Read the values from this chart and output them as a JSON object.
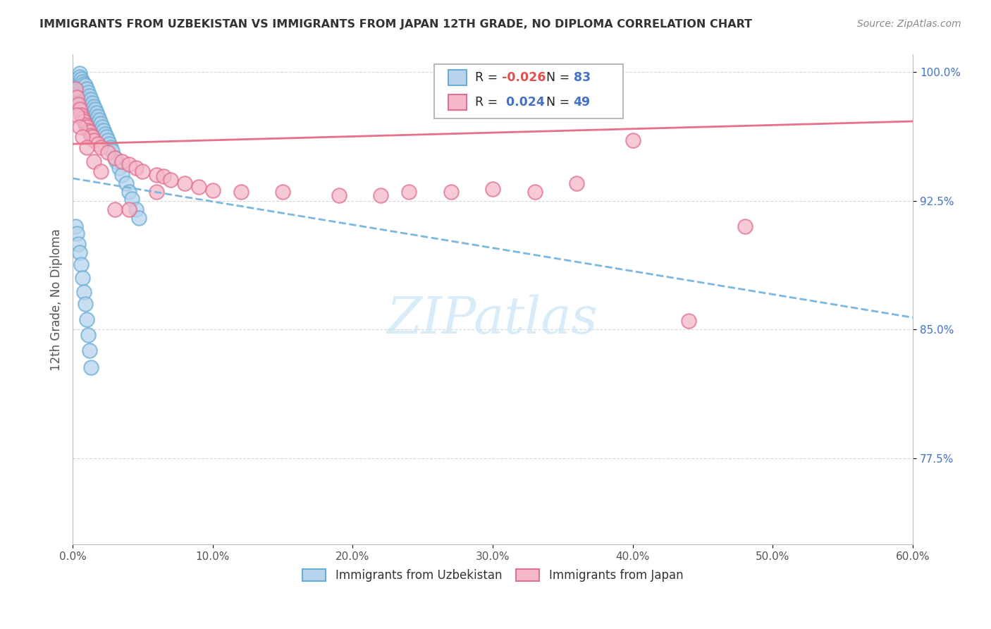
{
  "title": "IMMIGRANTS FROM UZBEKISTAN VS IMMIGRANTS FROM JAPAN 12TH GRADE, NO DIPLOMA CORRELATION CHART",
  "source": "Source: ZipAtlas.com",
  "ylabel": "12th Grade, No Diploma",
  "xlim": [
    0.0,
    0.6
  ],
  "ylim": [
    0.725,
    1.01
  ],
  "xtick_vals": [
    0.0,
    0.1,
    0.2,
    0.3,
    0.4,
    0.5,
    0.6
  ],
  "ytick_labels": [
    "77.5%",
    "85.0%",
    "92.5%",
    "100.0%"
  ],
  "ytick_vals": [
    0.775,
    0.85,
    0.925,
    1.0
  ],
  "legend_label1": "Immigrants from Uzbekistan",
  "legend_label2": "Immigrants from Japan",
  "R1": "-0.026",
  "N1": "83",
  "R2": "0.024",
  "N2": "49",
  "color_uzbek_face": "#b8d4ec",
  "color_uzbek_edge": "#6aaed6",
  "color_japan_face": "#f4b8c8",
  "color_japan_edge": "#e07090",
  "color_uzbek_line": "#7ab8e0",
  "color_japan_line": "#e8708a",
  "watermark_color": "#d0e8f8",
  "uzbek_trend": [
    -0.135,
    0.938
  ],
  "japan_trend": [
    0.022,
    0.958
  ],
  "uzbek_x": [
    0.002,
    0.003,
    0.003,
    0.004,
    0.004,
    0.004,
    0.005,
    0.005,
    0.005,
    0.005,
    0.005,
    0.006,
    0.006,
    0.006,
    0.006,
    0.007,
    0.007,
    0.007,
    0.007,
    0.008,
    0.008,
    0.008,
    0.008,
    0.009,
    0.009,
    0.009,
    0.009,
    0.01,
    0.01,
    0.01,
    0.01,
    0.011,
    0.011,
    0.011,
    0.012,
    0.012,
    0.012,
    0.013,
    0.013,
    0.013,
    0.014,
    0.014,
    0.015,
    0.015,
    0.015,
    0.016,
    0.016,
    0.017,
    0.017,
    0.018,
    0.018,
    0.019,
    0.02,
    0.02,
    0.021,
    0.022,
    0.023,
    0.024,
    0.025,
    0.026,
    0.027,
    0.028,
    0.03,
    0.031,
    0.033,
    0.035,
    0.038,
    0.04,
    0.042,
    0.045,
    0.047,
    0.002,
    0.003,
    0.004,
    0.005,
    0.006,
    0.007,
    0.008,
    0.009,
    0.01,
    0.011,
    0.012,
    0.013
  ],
  "uzbek_y": [
    0.995,
    0.992,
    0.988,
    0.996,
    0.99,
    0.985,
    0.999,
    0.997,
    0.993,
    0.989,
    0.983,
    0.996,
    0.992,
    0.987,
    0.981,
    0.994,
    0.99,
    0.985,
    0.979,
    0.993,
    0.988,
    0.983,
    0.977,
    0.992,
    0.987,
    0.982,
    0.976,
    0.99,
    0.986,
    0.98,
    0.974,
    0.988,
    0.984,
    0.978,
    0.986,
    0.982,
    0.976,
    0.984,
    0.98,
    0.975,
    0.982,
    0.978,
    0.98,
    0.976,
    0.971,
    0.978,
    0.974,
    0.976,
    0.972,
    0.974,
    0.97,
    0.972,
    0.97,
    0.966,
    0.968,
    0.966,
    0.964,
    0.962,
    0.96,
    0.958,
    0.956,
    0.954,
    0.95,
    0.948,
    0.944,
    0.94,
    0.935,
    0.93,
    0.926,
    0.92,
    0.915,
    0.91,
    0.906,
    0.9,
    0.895,
    0.888,
    0.88,
    0.872,
    0.865,
    0.856,
    0.847,
    0.838,
    0.828
  ],
  "japan_x": [
    0.002,
    0.003,
    0.004,
    0.005,
    0.006,
    0.007,
    0.008,
    0.009,
    0.01,
    0.011,
    0.012,
    0.013,
    0.014,
    0.015,
    0.018,
    0.02,
    0.025,
    0.03,
    0.035,
    0.04,
    0.045,
    0.05,
    0.06,
    0.065,
    0.07,
    0.08,
    0.09,
    0.1,
    0.12,
    0.15,
    0.19,
    0.22,
    0.24,
    0.27,
    0.3,
    0.33,
    0.36,
    0.4,
    0.44,
    0.48,
    0.003,
    0.005,
    0.007,
    0.01,
    0.015,
    0.02,
    0.03,
    0.04,
    0.06
  ],
  "japan_y": [
    0.99,
    0.985,
    0.981,
    0.978,
    0.975,
    0.973,
    0.971,
    0.969,
    0.968,
    0.966,
    0.965,
    0.963,
    0.962,
    0.96,
    0.958,
    0.956,
    0.953,
    0.95,
    0.948,
    0.946,
    0.944,
    0.942,
    0.94,
    0.939,
    0.937,
    0.935,
    0.933,
    0.931,
    0.93,
    0.93,
    0.928,
    0.928,
    0.93,
    0.93,
    0.932,
    0.93,
    0.935,
    0.96,
    0.855,
    0.91,
    0.975,
    0.968,
    0.962,
    0.956,
    0.948,
    0.942,
    0.92,
    0.92,
    0.93
  ]
}
